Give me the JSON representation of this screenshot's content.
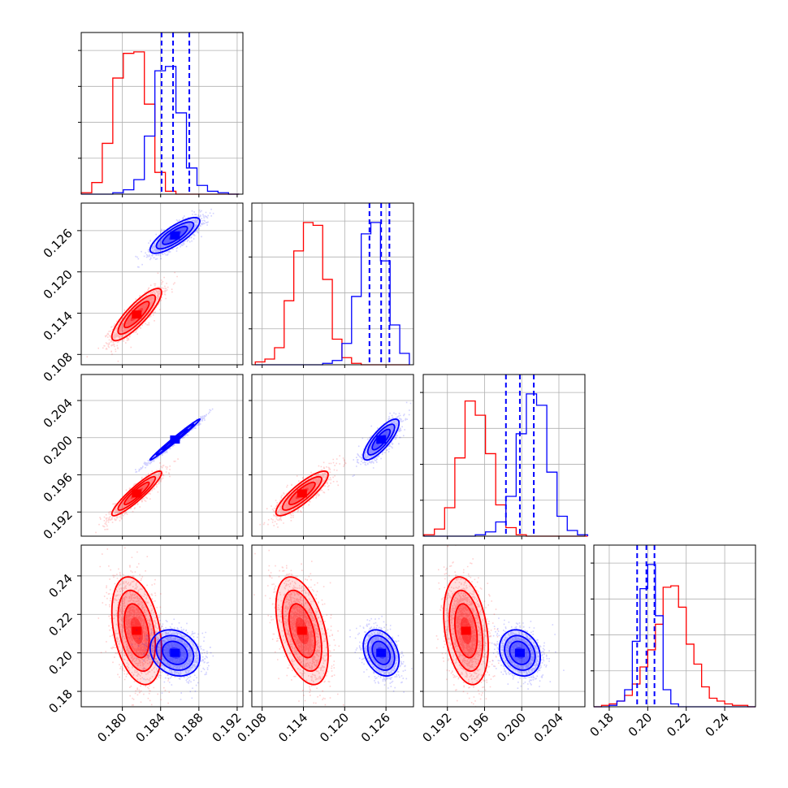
{
  "chart_data": {
    "type": "corner",
    "grid": true,
    "colors": {
      "series_a": "#ff0000",
      "series_b": "#0000ff"
    },
    "series": [
      {
        "color": "#ff0000",
        "mean": [
          0.1815,
          0.1138,
          0.194,
          0.2115
        ]
      },
      {
        "color": "#0000ff",
        "mean": [
          0.1855,
          0.1253,
          0.1998,
          0.2
        ]
      }
    ],
    "params": [
      {
        "range": [
          0.1757,
          0.1926
        ],
        "ticks": [
          "0.180",
          "0.184",
          "0.188",
          "0.192"
        ],
        "tick_values": [
          0.18,
          0.184,
          0.188,
          0.192
        ]
      },
      {
        "range": [
          0.1065,
          0.13
        ],
        "ticks": [
          "0.108",
          "0.114",
          "0.120",
          "0.126"
        ],
        "tick_values": [
          0.108,
          0.114,
          0.12,
          0.126
        ]
      },
      {
        "range": [
          0.1894,
          0.2068
        ],
        "ticks": [
          "0.192",
          "0.196",
          "0.200",
          "0.204"
        ],
        "tick_values": [
          0.192,
          0.196,
          0.2,
          0.204
        ]
      },
      {
        "range": [
          0.172,
          0.256
        ],
        "ticks": [
          "0.18",
          "0.20",
          "0.22",
          "0.24"
        ],
        "tick_values": [
          0.18,
          0.2,
          0.22,
          0.24
        ]
      }
    ],
    "quantile_lines": [
      [
        0.1841,
        0.1853,
        0.187
      ],
      [
        0.1236,
        0.1253,
        0.1265
      ],
      [
        0.1983,
        0.1998,
        0.2013
      ],
      [
        0.1945,
        0.1993,
        0.2035
      ]
    ],
    "histograms": [
      {
        "bin_edges": [
          0.1757,
          0.1768,
          0.1779,
          0.179,
          0.1801,
          0.1812,
          0.1823,
          0.1834,
          0.1845,
          0.1856,
          0.1867,
          0.1878,
          0.1889,
          0.19,
          0.1911,
          0.1922
        ],
        "red": [
          1,
          8,
          35,
          80,
          97,
          98,
          62,
          15,
          2,
          0,
          0,
          0,
          0,
          0,
          0
        ],
        "blue": [
          0,
          0,
          0,
          1,
          3,
          10,
          40,
          85,
          88,
          56,
          18,
          6,
          2,
          1,
          0
        ]
      },
      {
        "bin_edges": [
          0.107,
          0.1084,
          0.1098,
          0.1112,
          0.1126,
          0.114,
          0.1154,
          0.1168,
          0.1182,
          0.1196,
          0.121,
          0.1224,
          0.1238,
          0.1252,
          0.1266,
          0.128,
          0.1294
        ],
        "red": [
          2,
          4,
          12,
          45,
          80,
          100,
          98,
          60,
          18,
          5,
          1,
          0,
          0,
          0,
          0,
          0
        ],
        "blue": [
          0,
          0,
          0,
          0,
          0,
          0,
          0,
          1,
          3,
          15,
          48,
          92,
          100,
          73,
          28,
          8
        ]
      },
      {
        "bin_edges": [
          0.1895,
          0.1906,
          0.1917,
          0.1928,
          0.1939,
          0.195,
          0.1961,
          0.1972,
          0.1983,
          0.1994,
          0.2005,
          0.2016,
          0.2027,
          0.2038,
          0.2049,
          0.206,
          0.2071
        ],
        "red": [
          1,
          5,
          20,
          55,
          95,
          85,
          58,
          22,
          6,
          1,
          0,
          0,
          0,
          0,
          0,
          0
        ],
        "blue": [
          0,
          0,
          0,
          0,
          0,
          1,
          3,
          10,
          28,
          72,
          100,
          92,
          45,
          14,
          4,
          1
        ]
      },
      {
        "bin_edges": [
          0.172,
          0.176,
          0.18,
          0.184,
          0.188,
          0.192,
          0.196,
          0.2,
          0.204,
          0.208,
          0.212,
          0.216,
          0.22,
          0.224,
          0.228,
          0.232,
          0.236,
          0.24,
          0.244,
          0.248,
          0.252,
          0.256
        ],
        "red": [
          0,
          1,
          2,
          4,
          8,
          16,
          28,
          40,
          58,
          84,
          85,
          70,
          44,
          30,
          14,
          6,
          4,
          2,
          1,
          1,
          0
        ],
        "blue": [
          0,
          0,
          1,
          4,
          12,
          46,
          83,
          100,
          64,
          12,
          2,
          0,
          0,
          0,
          0,
          0,
          0,
          0,
          0,
          0,
          0
        ]
      }
    ],
    "correlations": {
      "red": {
        "1-0": 0.85,
        "2-0": 0.92,
        "2-1": 0.85,
        "3-0": -0.35,
        "3-1": -0.45,
        "3-2": -0.3
      },
      "blue": {
        "1-0": 0.8,
        "2-0": 0.99,
        "2-1": 0.8,
        "3-0": -0.2,
        "3-1": -0.3,
        "3-2": -0.2
      }
    },
    "sd": {
      "red": [
        0.0013,
        0.0019,
        0.0012,
        0.014
      ],
      "blue": [
        0.0013,
        0.0013,
        0.0011,
        0.006
      ]
    }
  }
}
